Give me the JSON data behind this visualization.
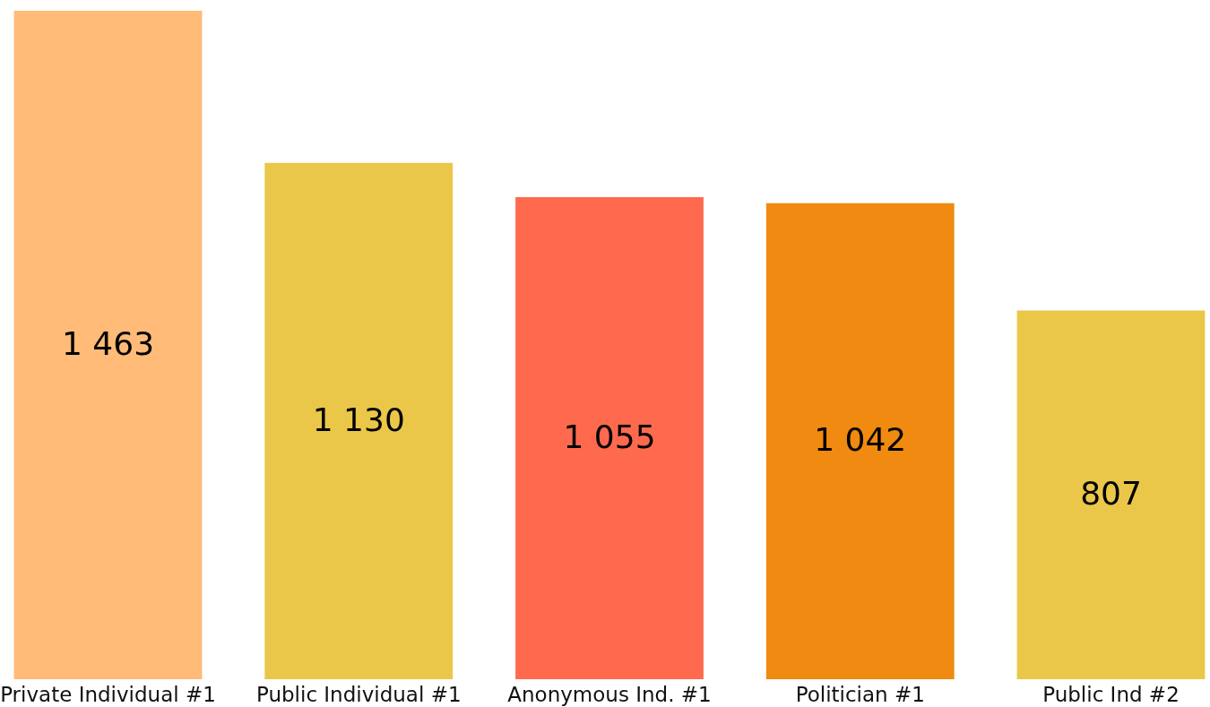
{
  "chart_data": {
    "type": "bar",
    "categories": [
      "Private Individual #1",
      "Public Individual #1",
      "Anonymous Ind. #1",
      "Politician #1",
      "Public Ind #2"
    ],
    "values": [
      1463,
      1130,
      1055,
      1042,
      807
    ],
    "colors": [
      "#ffbb77",
      "#eac749",
      "#ff6a4f",
      "#f08a10",
      "#eac749"
    ],
    "value_labels": [
      "1 463",
      "1 130",
      "1 055",
      "1 042",
      "807"
    ],
    "grid": false
  }
}
